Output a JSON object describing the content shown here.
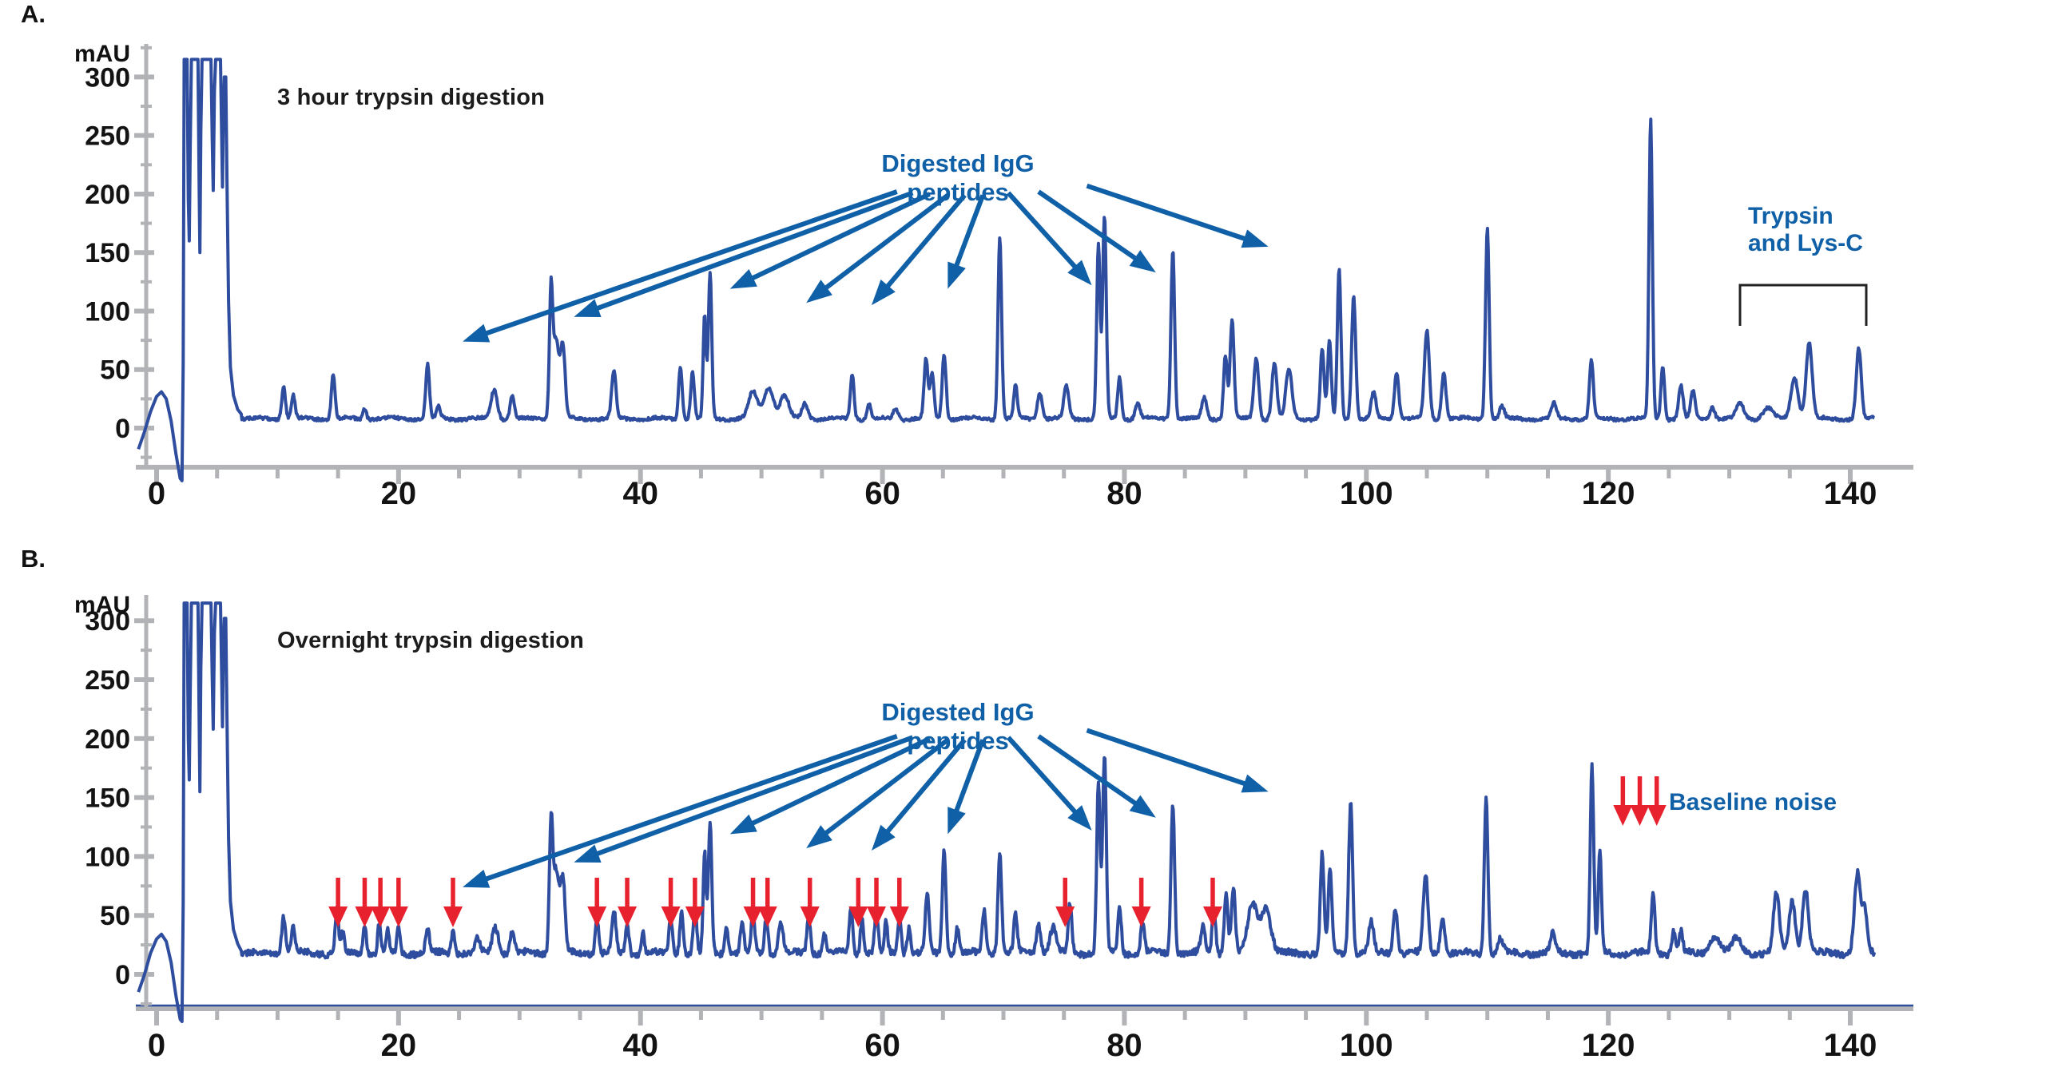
{
  "figure": {
    "panel_a_letter": "A.",
    "panel_b_letter": "B."
  },
  "colors": {
    "trace": "#2e4d9e",
    "annotation": "#1060a8",
    "red": "#e8212f",
    "axis": "#b2b3b6",
    "text": "#1c1c1c",
    "bracket": "#222222"
  },
  "axes": {
    "y_unit": "mAU",
    "y_major": [
      300,
      250,
      200,
      150,
      100,
      50,
      0
    ],
    "y_minor": [
      -25,
      25,
      75,
      125,
      175,
      225,
      275,
      325
    ],
    "x_major": [
      0,
      20,
      40,
      60,
      80,
      100,
      120,
      140
    ],
    "x_minor": [
      5,
      10,
      15,
      25,
      30,
      35,
      45,
      50,
      55,
      65,
      70,
      75,
      85,
      90,
      95,
      105,
      110,
      115,
      125,
      130,
      135
    ]
  },
  "annotations": {
    "digested_label": "Digested IgG peptides",
    "trypsin_label_line1": "Trypsin",
    "trypsin_label_line2": "and Lys-C",
    "baseline_noise_label": "Baseline noise",
    "trypsin_bracket_range_min": [
      131,
      141.5
    ],
    "igg_arrows": [
      {
        "from": [
          61.2,
          202
        ],
        "to": [
          25.3,
          74
        ]
      },
      {
        "from": [
          62.5,
          201
        ],
        "to": [
          34.5,
          95
        ]
      },
      {
        "from": [
          63.9,
          200
        ],
        "to": [
          47.4,
          119
        ]
      },
      {
        "from": [
          65.4,
          199
        ],
        "to": [
          53.7,
          107
        ]
      },
      {
        "from": [
          66.8,
          199
        ],
        "to": [
          59.1,
          105
        ]
      },
      {
        "from": [
          68.3,
          199
        ],
        "to": [
          65.4,
          119
        ]
      },
      {
        "from": [
          70.4,
          201
        ],
        "to": [
          77.3,
          122
        ]
      },
      {
        "from": [
          72.9,
          202
        ],
        "to": [
          82.6,
          133
        ]
      },
      {
        "from": [
          76.9,
          207
        ],
        "to": [
          91.9,
          155
        ]
      }
    ]
  },
  "chart_data": [
    {
      "type": "line",
      "panel": "A",
      "title": "3 hour trypsin digestion",
      "y_unit": "mAU",
      "x_range": [
        -2,
        142
      ],
      "y_range": [
        -45,
        320
      ],
      "grid": false,
      "baseline": 8,
      "noise": 1.3,
      "wave": 1.0,
      "front": [
        [
          -1.5,
          -18
        ],
        [
          -1,
          -3
        ],
        [
          -0.5,
          14
        ],
        [
          0,
          27
        ],
        [
          0.4,
          31
        ],
        [
          0.8,
          25
        ],
        [
          1.2,
          6
        ],
        [
          1.6,
          -22
        ],
        [
          1.95,
          -43
        ],
        [
          2.1,
          -45
        ],
        [
          2.2,
          55
        ],
        [
          2.28,
          315
        ],
        [
          2.52,
          315
        ],
        [
          2.62,
          195
        ],
        [
          2.7,
          160
        ],
        [
          2.78,
          240
        ],
        [
          2.88,
          315
        ],
        [
          3.42,
          315
        ],
        [
          3.52,
          205
        ],
        [
          3.58,
          150
        ],
        [
          3.66,
          255
        ],
        [
          3.76,
          315
        ],
        [
          4.5,
          315
        ],
        [
          4.6,
          245
        ],
        [
          4.68,
          203
        ],
        [
          4.78,
          288
        ],
        [
          4.88,
          315
        ],
        [
          5.28,
          315
        ],
        [
          5.38,
          248
        ],
        [
          5.45,
          206
        ],
        [
          5.52,
          268
        ],
        [
          5.6,
          300
        ],
        [
          5.72,
          300
        ],
        [
          5.82,
          212
        ],
        [
          5.95,
          108
        ],
        [
          6.1,
          52
        ],
        [
          6.35,
          28
        ],
        [
          6.7,
          16
        ],
        [
          7.0,
          12
        ]
      ],
      "peaks": [
        [
          10.5,
          28,
          0.15
        ],
        [
          11.3,
          20,
          0.15
        ],
        [
          14.6,
          38,
          0.15
        ],
        [
          17.2,
          9,
          0.15
        ],
        [
          22.4,
          46,
          0.15
        ],
        [
          23.3,
          11,
          0.15
        ],
        [
          27.9,
          25,
          0.25
        ],
        [
          29.4,
          20,
          0.18
        ],
        [
          32.6,
          92,
          0.13
        ],
        [
          33.0,
          68,
          0.3
        ],
        [
          33.6,
          55,
          0.18
        ],
        [
          37.8,
          40,
          0.18
        ],
        [
          43.3,
          45,
          0.15
        ],
        [
          44.3,
          40,
          0.15
        ],
        [
          45.3,
          88,
          0.12
        ],
        [
          45.75,
          125,
          0.14
        ],
        [
          49.3,
          23,
          0.35
        ],
        [
          50.6,
          27,
          0.4
        ],
        [
          51.9,
          20,
          0.35
        ],
        [
          53.6,
          13,
          0.25
        ],
        [
          57.5,
          38,
          0.15
        ],
        [
          58.9,
          13,
          0.15
        ],
        [
          61.1,
          9,
          0.2
        ],
        [
          63.6,
          50,
          0.16
        ],
        [
          64.1,
          38,
          0.16
        ],
        [
          65.1,
          55,
          0.16
        ],
        [
          69.7,
          155,
          0.15
        ],
        [
          71.0,
          28,
          0.15
        ],
        [
          73.0,
          23,
          0.2
        ],
        [
          75.2,
          28,
          0.2
        ],
        [
          77.85,
          150,
          0.14
        ],
        [
          78.35,
          172,
          0.15
        ],
        [
          79.6,
          36,
          0.15
        ],
        [
          81.1,
          13,
          0.2
        ],
        [
          84.0,
          145,
          0.15
        ],
        [
          86.6,
          18,
          0.2
        ],
        [
          88.35,
          55,
          0.15
        ],
        [
          88.9,
          85,
          0.16
        ],
        [
          90.9,
          52,
          0.2
        ],
        [
          92.4,
          48,
          0.2
        ],
        [
          93.6,
          42,
          0.25
        ],
        [
          96.35,
          60,
          0.15
        ],
        [
          96.95,
          66,
          0.15
        ],
        [
          97.75,
          128,
          0.15
        ],
        [
          98.95,
          105,
          0.17
        ],
        [
          100.6,
          22,
          0.2
        ],
        [
          102.5,
          40,
          0.18
        ],
        [
          105.0,
          75,
          0.2
        ],
        [
          106.4,
          40,
          0.18
        ],
        [
          110.0,
          165,
          0.15
        ],
        [
          111.2,
          10,
          0.2
        ],
        [
          115.5,
          13,
          0.2
        ],
        [
          118.6,
          50,
          0.16
        ],
        [
          123.5,
          255,
          0.14
        ],
        [
          124.5,
          45,
          0.15
        ],
        [
          126.0,
          28,
          0.18
        ],
        [
          127.0,
          23,
          0.18
        ],
        [
          128.6,
          10,
          0.2
        ],
        [
          130.9,
          13,
          0.3
        ],
        [
          133.2,
          9,
          0.4
        ],
        [
          135.4,
          35,
          0.3
        ],
        [
          136.6,
          65,
          0.25
        ],
        [
          140.7,
          60,
          0.2
        ]
      ]
    },
    {
      "type": "line",
      "panel": "B",
      "title": "Overnight trypsin digestion",
      "y_unit": "mAU",
      "x_range": [
        -2,
        142
      ],
      "y_range": [
        -45,
        320
      ],
      "grid": false,
      "baseline": 18,
      "noise": 2.6,
      "wave": 1.4,
      "front": [
        [
          -1.5,
          -15
        ],
        [
          -1,
          0
        ],
        [
          -0.5,
          18
        ],
        [
          0,
          30
        ],
        [
          0.4,
          34
        ],
        [
          0.8,
          28
        ],
        [
          1.2,
          10
        ],
        [
          1.6,
          -18
        ],
        [
          1.95,
          -38
        ],
        [
          2.1,
          -40
        ],
        [
          2.2,
          60
        ],
        [
          2.28,
          315
        ],
        [
          2.52,
          315
        ],
        [
          2.62,
          200
        ],
        [
          2.7,
          165
        ],
        [
          2.78,
          240
        ],
        [
          2.88,
          315
        ],
        [
          3.42,
          315
        ],
        [
          3.52,
          215
        ],
        [
          3.58,
          155
        ],
        [
          3.66,
          260
        ],
        [
          3.76,
          315
        ],
        [
          4.5,
          315
        ],
        [
          4.6,
          250
        ],
        [
          4.68,
          208
        ],
        [
          4.78,
          290
        ],
        [
          4.88,
          315
        ],
        [
          5.28,
          315
        ],
        [
          5.38,
          252
        ],
        [
          5.45,
          210
        ],
        [
          5.52,
          272
        ],
        [
          5.6,
          302
        ],
        [
          5.72,
          302
        ],
        [
          5.82,
          218
        ],
        [
          5.95,
          115
        ],
        [
          6.1,
          62
        ],
        [
          6.35,
          38
        ],
        [
          6.7,
          26
        ],
        [
          7.0,
          20
        ]
      ],
      "peaks": [
        [
          10.5,
          32,
          0.15
        ],
        [
          11.3,
          22,
          0.15
        ],
        [
          14.9,
          38,
          0.14
        ],
        [
          15.4,
          18,
          0.12
        ],
        [
          17.2,
          26,
          0.13
        ],
        [
          18.4,
          25,
          0.13
        ],
        [
          19.1,
          18,
          0.12
        ],
        [
          20.0,
          23,
          0.13
        ],
        [
          22.4,
          22,
          0.15
        ],
        [
          24.5,
          20,
          0.13
        ],
        [
          26.5,
          12,
          0.2
        ],
        [
          28.0,
          22,
          0.25
        ],
        [
          29.4,
          18,
          0.18
        ],
        [
          32.6,
          92,
          0.13
        ],
        [
          33.0,
          72,
          0.3
        ],
        [
          33.6,
          55,
          0.18
        ],
        [
          36.4,
          30,
          0.14
        ],
        [
          37.8,
          36,
          0.16
        ],
        [
          38.9,
          27,
          0.14
        ],
        [
          40.2,
          18,
          0.14
        ],
        [
          42.5,
          30,
          0.14
        ],
        [
          43.4,
          36,
          0.14
        ],
        [
          44.5,
          40,
          0.14
        ],
        [
          45.3,
          85,
          0.12
        ],
        [
          45.75,
          110,
          0.14
        ],
        [
          47.1,
          22,
          0.15
        ],
        [
          48.4,
          26,
          0.14
        ],
        [
          49.3,
          36,
          0.14
        ],
        [
          50.4,
          32,
          0.14
        ],
        [
          51.6,
          26,
          0.2
        ],
        [
          53.9,
          32,
          0.15
        ],
        [
          55.2,
          18,
          0.15
        ],
        [
          57.4,
          40,
          0.14
        ],
        [
          58.3,
          30,
          0.13
        ],
        [
          59.5,
          36,
          0.14
        ],
        [
          60.3,
          26,
          0.13
        ],
        [
          61.4,
          32,
          0.14
        ],
        [
          62.2,
          22,
          0.14
        ],
        [
          63.7,
          50,
          0.16
        ],
        [
          65.1,
          88,
          0.15
        ],
        [
          66.2,
          22,
          0.15
        ],
        [
          68.4,
          36,
          0.15
        ],
        [
          69.7,
          86,
          0.15
        ],
        [
          71.0,
          32,
          0.15
        ],
        [
          72.9,
          26,
          0.18
        ],
        [
          74.1,
          22,
          0.25
        ],
        [
          75.5,
          42,
          0.15
        ],
        [
          77.85,
          145,
          0.14
        ],
        [
          78.35,
          168,
          0.15
        ],
        [
          79.6,
          38,
          0.15
        ],
        [
          81.5,
          26,
          0.15
        ],
        [
          84.0,
          128,
          0.15
        ],
        [
          86.5,
          22,
          0.18
        ],
        [
          87.4,
          38,
          0.15
        ],
        [
          88.4,
          50,
          0.15
        ],
        [
          89.0,
          55,
          0.16
        ],
        [
          90.6,
          42,
          0.4
        ],
        [
          91.7,
          38,
          0.4
        ],
        [
          96.35,
          85,
          0.15
        ],
        [
          97.0,
          70,
          0.15
        ],
        [
          98.7,
          128,
          0.16
        ],
        [
          100.4,
          26,
          0.2
        ],
        [
          102.4,
          38,
          0.18
        ],
        [
          104.9,
          66,
          0.2
        ],
        [
          106.3,
          32,
          0.18
        ],
        [
          109.9,
          132,
          0.15
        ],
        [
          111.1,
          12,
          0.2
        ],
        [
          115.4,
          16,
          0.2
        ],
        [
          118.65,
          158,
          0.14
        ],
        [
          119.3,
          85,
          0.14
        ],
        [
          123.7,
          50,
          0.15
        ],
        [
          125.4,
          20,
          0.15
        ],
        [
          126.0,
          18,
          0.15
        ],
        [
          128.8,
          14,
          0.4
        ],
        [
          130.6,
          12,
          0.4
        ],
        [
          133.9,
          50,
          0.25
        ],
        [
          135.2,
          45,
          0.25
        ],
        [
          136.3,
          55,
          0.25
        ],
        [
          140.6,
          68,
          0.25
        ],
        [
          141.2,
          35,
          0.2
        ]
      ],
      "red_arrows_min": [
        15.0,
        17.2,
        18.5,
        20.0,
        24.5,
        36.4,
        38.9,
        42.5,
        44.5,
        49.3,
        50.5,
        54.0,
        58.0,
        59.5,
        61.4,
        75.1,
        81.4,
        87.3
      ],
      "red_arrow_mau_span": [
        82,
        40
      ],
      "baseline_noise_arrows_min": [
        121.2,
        122.6,
        124.0
      ],
      "baseline_noise_arrow_mau_span": [
        168,
        126
      ]
    }
  ]
}
